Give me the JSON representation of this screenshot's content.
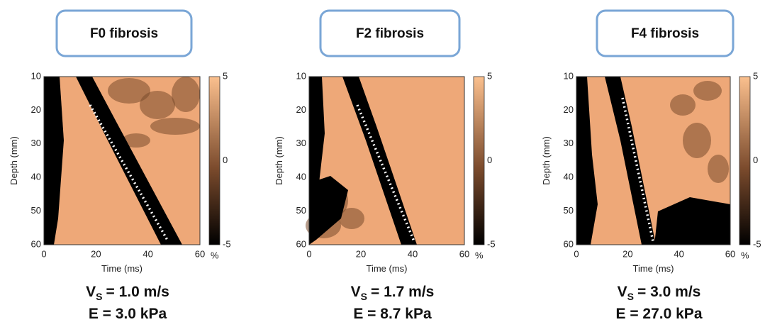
{
  "panels": [
    {
      "title": "F0 fibrosis",
      "y_label": "Depth (mm)",
      "x_label": "Time (ms)",
      "y_ticks": [
        "10",
        "20",
        "30",
        "40",
        "50",
        "60"
      ],
      "x_ticks": [
        "0",
        "20",
        "40",
        "60"
      ],
      "colorbar_ticks": [
        "5",
        "0",
        "-5"
      ],
      "colorbar_unit": "%",
      "velocity": {
        "symbol": "V",
        "subscript": "S",
        "value": "= 1.0 m/s"
      },
      "modulus": "E = 3.0 kPa"
    },
    {
      "title": "F2 fibrosis",
      "y_label": "Depth (mm)",
      "x_label": "Time (ms)",
      "y_ticks": [
        "10",
        "20",
        "30",
        "40",
        "50",
        "60"
      ],
      "x_ticks": [
        "0",
        "20",
        "40",
        "60"
      ],
      "colorbar_ticks": [
        "5",
        "0",
        "-5"
      ],
      "colorbar_unit": "%",
      "velocity": {
        "symbol": "V",
        "subscript": "S",
        "value": "= 1.7 m/s"
      },
      "modulus": "E = 8.7 kPa"
    },
    {
      "title": "F4 fibrosis",
      "y_label": "Depth (mm)",
      "x_label": "Time (ms)",
      "y_ticks": [
        "10",
        "20",
        "30",
        "40",
        "50",
        "60"
      ],
      "x_ticks": [
        "0",
        "20",
        "40",
        "60"
      ],
      "colorbar_ticks": [
        "5",
        "0",
        "-5"
      ],
      "colorbar_unit": "%",
      "velocity": {
        "symbol": "V",
        "subscript": "S",
        "value": "= 3.0 m/s"
      },
      "modulus": "E = 27.0 kPa"
    }
  ]
}
